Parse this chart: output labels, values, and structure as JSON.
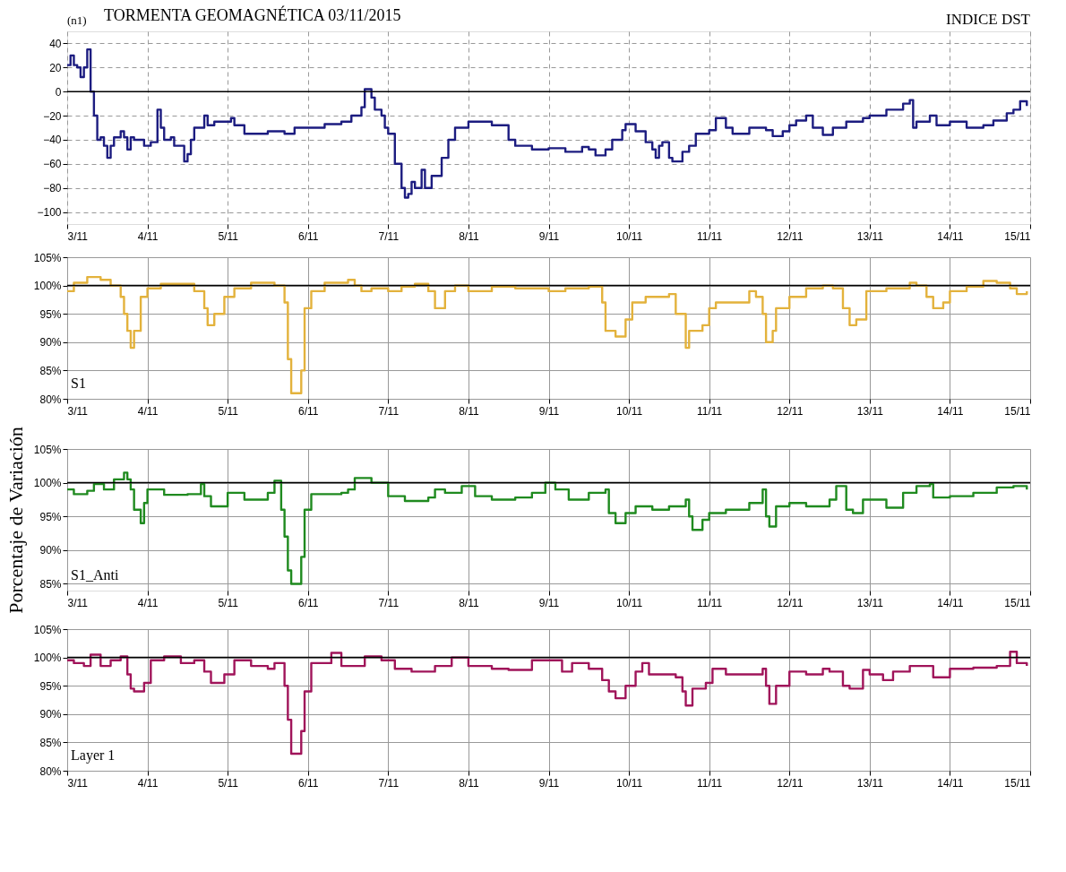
{
  "chart_data": [
    {
      "type": "step",
      "title": "TORMENTA GEOMAGNÉTICA 03/11/2015",
      "annotations": [
        "(n1)",
        "INDICE DST"
      ],
      "x": [
        "2015-11-03T00:00",
        "2015-11-03T01:00",
        "2015-11-03T02:00",
        "2015-11-03T03:00",
        "2015-11-03T04:00",
        "2015-11-03T05:00",
        "2015-11-03T06:00",
        "2015-11-03T07:00",
        "2015-11-03T08:00",
        "2015-11-03T09:00",
        "2015-11-03T10:00",
        "2015-11-03T11:00",
        "2015-11-03T12:00",
        "2015-11-03T13:00",
        "2015-11-03T14:00",
        "2015-11-03T16:00",
        "2015-11-03T17:00",
        "2015-11-03T18:00",
        "2015-11-03T19:00",
        "2015-11-03T20:00",
        "2015-11-03T23:00",
        "2015-11-04T01:00",
        "2015-11-04T03:00",
        "2015-11-04T04:00",
        "2015-11-04T05:00",
        "2015-11-04T07:00",
        "2015-11-04T08:00",
        "2015-11-04T11:00",
        "2015-11-04T12:00",
        "2015-11-04T13:00",
        "2015-11-04T14:00",
        "2015-11-04T17:00",
        "2015-11-04T18:00",
        "2015-11-04T20:00",
        "2015-11-05T01:00",
        "2015-11-05T02:00",
        "2015-11-05T05:00",
        "2015-11-05T12:00",
        "2015-11-05T17:00",
        "2015-11-05T20:00",
        "2015-11-06T00:00",
        "2015-11-06T05:00",
        "2015-11-06T10:00",
        "2015-11-06T13:00",
        "2015-11-06T16:00",
        "2015-11-06T17:00",
        "2015-11-06T19:00",
        "2015-11-06T20:00",
        "2015-11-06T22:00",
        "2015-11-06T23:00",
        "2015-11-07T00:00",
        "2015-11-07T02:00",
        "2015-11-07T04:00",
        "2015-11-07T05:00",
        "2015-11-07T06:00",
        "2015-11-07T07:00",
        "2015-11-07T08:00",
        "2015-11-07T10:00",
        "2015-11-07T11:00",
        "2015-11-07T13:00",
        "2015-11-07T16:00",
        "2015-11-07T18:00",
        "2015-11-07T20:00",
        "2015-11-08T00:00",
        "2015-11-08T07:00",
        "2015-11-08T12:00",
        "2015-11-08T14:00",
        "2015-11-08T19:00",
        "2015-11-09T00:00",
        "2015-11-09T05:00",
        "2015-11-09T10:00",
        "2015-11-09T12:00",
        "2015-11-09T14:00",
        "2015-11-09T17:00",
        "2015-11-09T19:00",
        "2015-11-09T22:00",
        "2015-11-09T23:00",
        "2015-11-10T02:00",
        "2015-11-10T05:00",
        "2015-11-10T07:00",
        "2015-11-10T08:00",
        "2015-11-10T09:00",
        "2015-11-10T10:00",
        "2015-11-10T12:00",
        "2015-11-10T13:00",
        "2015-11-10T16:00",
        "2015-11-10T18:00",
        "2015-11-10T20:00",
        "2015-11-11T00:00",
        "2015-11-11T02:00",
        "2015-11-11T05:00",
        "2015-11-11T07:00",
        "2015-11-11T12:00",
        "2015-11-11T17:00",
        "2015-11-11T19:00",
        "2015-11-11T22:00",
        "2015-11-12T00:00",
        "2015-11-12T02:00",
        "2015-11-12T05:00",
        "2015-11-12T07:00",
        "2015-11-12T10:00",
        "2015-11-12T13:00",
        "2015-11-12T17:00",
        "2015-11-12T22:00",
        "2015-11-13T00:00",
        "2015-11-13T05:00",
        "2015-11-13T10:00",
        "2015-11-13T12:00",
        "2015-11-13T13:00",
        "2015-11-13T14:00",
        "2015-11-13T18:00",
        "2015-11-13T20:00",
        "2015-11-14T00:00",
        "2015-11-14T05:00",
        "2015-11-14T10:00",
        "2015-11-14T13:00",
        "2015-11-14T17:00",
        "2015-11-14T19:00",
        "2015-11-14T21:00",
        "2015-11-14T23:00"
      ],
      "series": [
        {
          "color": "#1c1c80",
          "values": [
            22,
            30,
            22,
            20,
            12,
            20,
            35,
            0,
            -20,
            -40,
            -38,
            -45,
            -55,
            -45,
            -38,
            -33,
            -38,
            -48,
            -38,
            -40,
            -45,
            -42,
            -15,
            -30,
            -40,
            -38,
            -45,
            -58,
            -52,
            -40,
            -30,
            -20,
            -28,
            -25,
            -22,
            -28,
            -35,
            -33,
            -35,
            -30,
            -30,
            -27,
            -25,
            -20,
            -13,
            2,
            -5,
            -15,
            -20,
            -30,
            -35,
            -60,
            -80,
            -88,
            -85,
            -75,
            -80,
            -65,
            -80,
            -70,
            -55,
            -40,
            -30,
            -25,
            -28,
            -40,
            -45,
            -48,
            -47,
            -50,
            -46,
            -48,
            -53,
            -48,
            -40,
            -32,
            -27,
            -33,
            -42,
            -48,
            -55,
            -45,
            -42,
            -55,
            -58,
            -50,
            -45,
            -35,
            -32,
            -22,
            -30,
            -35,
            -30,
            -32,
            -37,
            -33,
            -28,
            -24,
            -20,
            -30,
            -36,
            -30,
            -25,
            -22,
            -20,
            -15,
            -10,
            -7,
            -30,
            -25,
            -20,
            -28,
            -25,
            -30,
            -28,
            -24,
            -18,
            -15,
            -8,
            -12
          ]
        }
      ],
      "xlim": [
        "2015-11-03",
        "2015-11-15"
      ],
      "xticks": [
        {
          "value": "2015-11-03",
          "label": "3/11"
        },
        {
          "value": "2015-11-04",
          "label": "4/11"
        },
        {
          "value": "2015-11-05",
          "label": "5/11"
        },
        {
          "value": "2015-11-06",
          "label": "6/11"
        },
        {
          "value": "2015-11-07",
          "label": "7/11"
        },
        {
          "value": "2015-11-08",
          "label": "8/11"
        },
        {
          "value": "2015-11-09",
          "label": "9/11"
        },
        {
          "value": "2015-11-10",
          "label": "10/11"
        },
        {
          "value": "2015-11-11",
          "label": "11/11"
        },
        {
          "value": "2015-11-12",
          "label": "12/11"
        },
        {
          "value": "2015-11-13",
          "label": "13/11"
        },
        {
          "value": "2015-11-14",
          "label": "14/11"
        },
        {
          "value": "2015-11-15",
          "label": "15/11"
        }
      ],
      "ylim": [
        -110,
        50
      ],
      "yticks": [
        -100,
        -80,
        -60,
        -40,
        -20,
        0,
        20,
        40
      ],
      "grid": true,
      "line_style": "solid",
      "ref_lines": [
        {
          "axis": "y",
          "value": 0,
          "color": "#000000"
        }
      ]
    },
    {
      "type": "step",
      "annotations": [
        "S1"
      ],
      "x": [
        "2015-11-03T00:00",
        "2015-11-03T02:00",
        "2015-11-03T06:00",
        "2015-11-03T10:00",
        "2015-11-03T13:00",
        "2015-11-03T16:00",
        "2015-11-03T17:00",
        "2015-11-03T18:00",
        "2015-11-03T19:00",
        "2015-11-03T20:00",
        "2015-11-03T22:00",
        "2015-11-04T00:00",
        "2015-11-04T04:00",
        "2015-11-04T12:00",
        "2015-11-04T14:00",
        "2015-11-04T17:00",
        "2015-11-04T18:00",
        "2015-11-04T20:00",
        "2015-11-04T23:00",
        "2015-11-05T02:00",
        "2015-11-05T07:00",
        "2015-11-05T12:00",
        "2015-11-05T14:00",
        "2015-11-05T17:00",
        "2015-11-05T18:00",
        "2015-11-05T19:00",
        "2015-11-05T22:00",
        "2015-11-05T23:00",
        "2015-11-06T01:00",
        "2015-11-06T05:00",
        "2015-11-06T12:00",
        "2015-11-06T14:00",
        "2015-11-06T16:00",
        "2015-11-06T19:00",
        "2015-11-07T00:00",
        "2015-11-07T04:00",
        "2015-11-07T08:00",
        "2015-11-07T12:00",
        "2015-11-07T14:00",
        "2015-11-07T17:00",
        "2015-11-07T20:00",
        "2015-11-08T00:00",
        "2015-11-08T07:00",
        "2015-11-08T14:00",
        "2015-11-08T19:00",
        "2015-11-09T00:00",
        "2015-11-09T05:00",
        "2015-11-09T12:00",
        "2015-11-09T16:00",
        "2015-11-09T17:00",
        "2015-11-09T20:00",
        "2015-11-09T23:00",
        "2015-11-10T01:00",
        "2015-11-10T05:00",
        "2015-11-10T12:00",
        "2015-11-10T14:00",
        "2015-11-10T17:00",
        "2015-11-10T18:00",
        "2015-11-10T22:00",
        "2015-11-11T00:00",
        "2015-11-11T02:00",
        "2015-11-11T12:00",
        "2015-11-11T14:00",
        "2015-11-11T16:00",
        "2015-11-11T17:00",
        "2015-11-11T19:00",
        "2015-11-11T20:00",
        "2015-11-12T00:00",
        "2015-11-12T05:00",
        "2015-11-12T10:00",
        "2015-11-12T13:00",
        "2015-11-12T16:00",
        "2015-11-12T18:00",
        "2015-11-12T20:00",
        "2015-11-12T23:00",
        "2015-11-13T05:00",
        "2015-11-13T12:00",
        "2015-11-13T14:00",
        "2015-11-13T17:00",
        "2015-11-13T19:00",
        "2015-11-13T22:00",
        "2015-11-14T00:00",
        "2015-11-14T05:00",
        "2015-11-14T10:00",
        "2015-11-14T14:00",
        "2015-11-14T18:00",
        "2015-11-14T20:00",
        "2015-11-14T23:00"
      ],
      "series": [
        {
          "color": "#e3b23c",
          "values": [
            99,
            100.5,
            101.5,
            101,
            100,
            98,
            95,
            92,
            89,
            92,
            98,
            99.5,
            100.3,
            100.3,
            99,
            96,
            93,
            95,
            98,
            99.5,
            100.5,
            100.5,
            100,
            97,
            87,
            81,
            85,
            96,
            99,
            100.5,
            101,
            100,
            99,
            99.5,
            99,
            99.8,
            100.3,
            99,
            96,
            99,
            100,
            99,
            99.8,
            99.5,
            99.5,
            99,
            99.5,
            99.8,
            97,
            92,
            91,
            94,
            97,
            98,
            98.5,
            95,
            89,
            92,
            93,
            96,
            97,
            99,
            98,
            95,
            90,
            92,
            96,
            98,
            99.5,
            100,
            99.5,
            96,
            93,
            94,
            99,
            99.5,
            100.5,
            100,
            98,
            96,
            97,
            99,
            99.8,
            100.8,
            100.5,
            99.5,
            98.5,
            99
          ]
        }
      ],
      "xlim": [
        "2015-11-03",
        "2015-11-15"
      ],
      "xticks": [
        {
          "value": "2015-11-03",
          "label": "3/11"
        },
        {
          "value": "2015-11-04",
          "label": "4/11"
        },
        {
          "value": "2015-11-05",
          "label": "5/11"
        },
        {
          "value": "2015-11-06",
          "label": "6/11"
        },
        {
          "value": "2015-11-07",
          "label": "7/11"
        },
        {
          "value": "2015-11-08",
          "label": "8/11"
        },
        {
          "value": "2015-11-09",
          "label": "9/11"
        },
        {
          "value": "2015-11-10",
          "label": "10/11"
        },
        {
          "value": "2015-11-11",
          "label": "11/11"
        },
        {
          "value": "2015-11-12",
          "label": "12/11"
        },
        {
          "value": "2015-11-13",
          "label": "13/11"
        },
        {
          "value": "2015-11-14",
          "label": "14/11"
        },
        {
          "value": "2015-11-15",
          "label": "15/11"
        }
      ],
      "ylim": [
        80,
        105
      ],
      "yticks": [
        {
          "value": 80,
          "label": "80%"
        },
        {
          "value": 85,
          "label": "85%"
        },
        {
          "value": 90,
          "label": "90%"
        },
        {
          "value": 95,
          "label": "95%"
        },
        {
          "value": 100,
          "label": "100%"
        },
        {
          "value": 105,
          "label": "105%"
        }
      ],
      "grid": true,
      "line_style": "solid",
      "ref_lines": [
        {
          "axis": "y",
          "value": 100,
          "color": "#000000"
        }
      ]
    },
    {
      "type": "step",
      "annotations": [
        "S1_Anti"
      ],
      "ylabel": "Porcentaje de Variación",
      "x": [
        "2015-11-03T00:00",
        "2015-11-03T02:00",
        "2015-11-03T06:00",
        "2015-11-03T08:00",
        "2015-11-03T11:00",
        "2015-11-03T14:00",
        "2015-11-03T17:00",
        "2015-11-03T18:00",
        "2015-11-03T19:00",
        "2015-11-03T20:00",
        "2015-11-03T22:00",
        "2015-11-03T23:00",
        "2015-11-04T00:00",
        "2015-11-04T05:00",
        "2015-11-04T12:00",
        "2015-11-04T16:00",
        "2015-11-04T17:00",
        "2015-11-04T19:00",
        "2015-11-05T00:00",
        "2015-11-05T05:00",
        "2015-11-05T12:00",
        "2015-11-05T14:00",
        "2015-11-05T16:00",
        "2015-11-05T17:00",
        "2015-11-05T18:00",
        "2015-11-05T19:00",
        "2015-11-05T22:00",
        "2015-11-05T23:00",
        "2015-11-06T01:00",
        "2015-11-06T10:00",
        "2015-11-06T12:00",
        "2015-11-06T14:00",
        "2015-11-06T19:00",
        "2015-11-07T00:00",
        "2015-11-07T05:00",
        "2015-11-07T12:00",
        "2015-11-07T14:00",
        "2015-11-07T17:00",
        "2015-11-07T22:00",
        "2015-11-08T02:00",
        "2015-11-08T07:00",
        "2015-11-08T14:00",
        "2015-11-08T19:00",
        "2015-11-08T23:00",
        "2015-11-09T02:00",
        "2015-11-09T06:00",
        "2015-11-09T12:00",
        "2015-11-09T17:00",
        "2015-11-09T18:00",
        "2015-11-09T20:00",
        "2015-11-09T23:00",
        "2015-11-10T02:00",
        "2015-11-10T07:00",
        "2015-11-10T12:00",
        "2015-11-10T17:00",
        "2015-11-10T18:00",
        "2015-11-10T19:00",
        "2015-11-10T22:00",
        "2015-11-11T00:00",
        "2015-11-11T05:00",
        "2015-11-11T12:00",
        "2015-11-11T16:00",
        "2015-11-11T17:00",
        "2015-11-11T18:00",
        "2015-11-11T20:00",
        "2015-11-12T00:00",
        "2015-11-12T05:00",
        "2015-11-12T12:00",
        "2015-11-12T14:00",
        "2015-11-12T17:00",
        "2015-11-12T19:00",
        "2015-11-12T22:00",
        "2015-11-13T05:00",
        "2015-11-13T10:00",
        "2015-11-13T14:00",
        "2015-11-13T18:00",
        "2015-11-13T19:00",
        "2015-11-14T00:00",
        "2015-11-14T07:00",
        "2015-11-14T14:00",
        "2015-11-14T19:00",
        "2015-11-14T23:00"
      ],
      "series": [
        {
          "color": "#1f8a1f",
          "values": [
            99,
            98.3,
            98.8,
            99.8,
            99,
            100.5,
            101.5,
            100.5,
            99,
            96,
            94,
            97,
            99,
            98.2,
            98.3,
            99.8,
            98,
            96.5,
            98.5,
            97.5,
            98.5,
            100.3,
            96,
            92,
            87,
            85,
            89,
            96,
            98.3,
            98.5,
            99,
            100.7,
            100,
            98,
            97.3,
            97.8,
            99,
            98.5,
            99.5,
            98,
            97.5,
            97.8,
            98.5,
            100,
            99,
            97.5,
            98.5,
            99,
            95.5,
            94,
            95.5,
            96.5,
            96,
            96.5,
            97.5,
            95,
            93,
            94.5,
            95.5,
            96,
            97,
            99,
            95,
            93.5,
            96.5,
            97,
            96.5,
            97.5,
            99.5,
            96,
            95.5,
            97.5,
            96.3,
            98.5,
            99.5,
            99.8,
            97.8,
            98,
            98.5,
            99.3,
            99.5,
            99
          ]
        }
      ],
      "xlim": [
        "2015-11-03",
        "2015-11-15"
      ],
      "xticks": [
        {
          "value": "2015-11-03",
          "label": "3/11"
        },
        {
          "value": "2015-11-04",
          "label": "4/11"
        },
        {
          "value": "2015-11-05",
          "label": "5/11"
        },
        {
          "value": "2015-11-06",
          "label": "6/11"
        },
        {
          "value": "2015-11-07",
          "label": "7/11"
        },
        {
          "value": "2015-11-08",
          "label": "8/11"
        },
        {
          "value": "2015-11-09",
          "label": "9/11"
        },
        {
          "value": "2015-11-10",
          "label": "10/11"
        },
        {
          "value": "2015-11-11",
          "label": "11/11"
        },
        {
          "value": "2015-11-12",
          "label": "12/11"
        },
        {
          "value": "2015-11-13",
          "label": "13/11"
        },
        {
          "value": "2015-11-14",
          "label": "14/11"
        },
        {
          "value": "2015-11-15",
          "label": "15/11"
        }
      ],
      "ylim": [
        84,
        105
      ],
      "yticks": [
        {
          "value": 85,
          "label": "85%"
        },
        {
          "value": 90,
          "label": "90%"
        },
        {
          "value": 95,
          "label": "95%"
        },
        {
          "value": 100,
          "label": "100%"
        },
        {
          "value": 105,
          "label": "105%"
        }
      ],
      "grid": true,
      "line_style": "solid",
      "ref_lines": [
        {
          "axis": "y",
          "value": 100,
          "color": "#000000"
        }
      ]
    },
    {
      "type": "step",
      "annotations": [
        "Layer 1"
      ],
      "x": [
        "2015-11-03T00:00",
        "2015-11-03T02:00",
        "2015-11-03T05:00",
        "2015-11-03T07:00",
        "2015-11-03T10:00",
        "2015-11-03T13:00",
        "2015-11-03T16:00",
        "2015-11-03T18:00",
        "2015-11-03T19:00",
        "2015-11-03T20:00",
        "2015-11-03T23:00",
        "2015-11-04T01:00",
        "2015-11-04T05:00",
        "2015-11-04T10:00",
        "2015-11-04T14:00",
        "2015-11-04T17:00",
        "2015-11-04T19:00",
        "2015-11-04T23:00",
        "2015-11-05T02:00",
        "2015-11-05T07:00",
        "2015-11-05T12:00",
        "2015-11-05T14:00",
        "2015-11-05T17:00",
        "2015-11-05T18:00",
        "2015-11-05T19:00",
        "2015-11-05T22:00",
        "2015-11-05T23:00",
        "2015-11-06T01:00",
        "2015-11-06T07:00",
        "2015-11-06T10:00",
        "2015-11-06T17:00",
        "2015-11-06T22:00",
        "2015-11-07T02:00",
        "2015-11-07T07:00",
        "2015-11-07T14:00",
        "2015-11-07T19:00",
        "2015-11-08T00:00",
        "2015-11-08T07:00",
        "2015-11-08T12:00",
        "2015-11-08T19:00",
        "2015-11-09T00:00",
        "2015-11-09T04:00",
        "2015-11-09T07:00",
        "2015-11-09T12:00",
        "2015-11-09T16:00",
        "2015-11-09T18:00",
        "2015-11-09T20:00",
        "2015-11-09T23:00",
        "2015-11-10T02:00",
        "2015-11-10T04:00",
        "2015-11-10T06:00",
        "2015-11-10T12:00",
        "2015-11-10T14:00",
        "2015-11-10T16:00",
        "2015-11-10T17:00",
        "2015-11-10T19:00",
        "2015-11-10T23:00",
        "2015-11-11T01:00",
        "2015-11-11T05:00",
        "2015-11-11T12:00",
        "2015-11-11T16:00",
        "2015-11-11T17:00",
        "2015-11-11T18:00",
        "2015-11-11T20:00",
        "2015-11-12T00:00",
        "2015-11-12T05:00",
        "2015-11-12T10:00",
        "2015-11-12T12:00",
        "2015-11-12T16:00",
        "2015-11-12T18:00",
        "2015-11-12T22:00",
        "2015-11-13T00:00",
        "2015-11-13T04:00",
        "2015-11-13T07:00",
        "2015-11-13T12:00",
        "2015-11-13T18:00",
        "2015-11-13T19:00",
        "2015-11-14T00:00",
        "2015-11-14T07:00",
        "2015-11-14T14:00",
        "2015-11-14T18:00",
        "2015-11-14T20:00",
        "2015-11-14T23:00"
      ],
      "series": [
        {
          "color": "#a0145a",
          "values": [
            99.5,
            99,
            98.5,
            100.5,
            98.5,
            99.5,
            100.2,
            97,
            94.5,
            94,
            95.5,
            99.5,
            100.2,
            99,
            99.5,
            97.5,
            95.5,
            97,
            99.5,
            98.5,
            98,
            99,
            95,
            89,
            83,
            87,
            94,
            99,
            100.8,
            98.5,
            100.2,
            99.5,
            98,
            97.5,
            98.5,
            100,
            98.5,
            98,
            97.8,
            99.5,
            99.5,
            97.5,
            99,
            98,
            96,
            94,
            92.8,
            95,
            97.5,
            99,
            97,
            97,
            96.5,
            94,
            91.5,
            94.5,
            95.5,
            98,
            97,
            97,
            98,
            95,
            91.8,
            95,
            97.5,
            97,
            98,
            97.5,
            95,
            94.5,
            97.8,
            97,
            96,
            97.5,
            98.5,
            98.5,
            96.5,
            98,
            98.2,
            98.5,
            101,
            99,
            98.5
          ]
        }
      ],
      "xlim": [
        "2015-11-03",
        "2015-11-15"
      ],
      "xticks": [
        {
          "value": "2015-11-03",
          "label": "3/11"
        },
        {
          "value": "2015-11-04",
          "label": "4/11"
        },
        {
          "value": "2015-11-05",
          "label": "5/11"
        },
        {
          "value": "2015-11-06",
          "label": "6/11"
        },
        {
          "value": "2015-11-07",
          "label": "7/11"
        },
        {
          "value": "2015-11-08",
          "label": "8/11"
        },
        {
          "value": "2015-11-09",
          "label": "9/11"
        },
        {
          "value": "2015-11-10",
          "label": "10/11"
        },
        {
          "value": "2015-11-11",
          "label": "11/11"
        },
        {
          "value": "2015-11-12",
          "label": "12/11"
        },
        {
          "value": "2015-11-13",
          "label": "13/11"
        },
        {
          "value": "2015-11-14",
          "label": "14/11"
        },
        {
          "value": "2015-11-15",
          "label": "15/11"
        }
      ],
      "ylim": [
        80,
        105
      ],
      "yticks": [
        {
          "value": 80,
          "label": "80%"
        },
        {
          "value": 85,
          "label": "85%"
        },
        {
          "value": 90,
          "label": "90%"
        },
        {
          "value": 95,
          "label": "95%"
        },
        {
          "value": 100,
          "label": "100%"
        },
        {
          "value": 105,
          "label": "105%"
        }
      ],
      "grid": true,
      "line_style": "solid",
      "ref_lines": [
        {
          "axis": "y",
          "value": 100,
          "color": "#000000"
        }
      ]
    }
  ]
}
